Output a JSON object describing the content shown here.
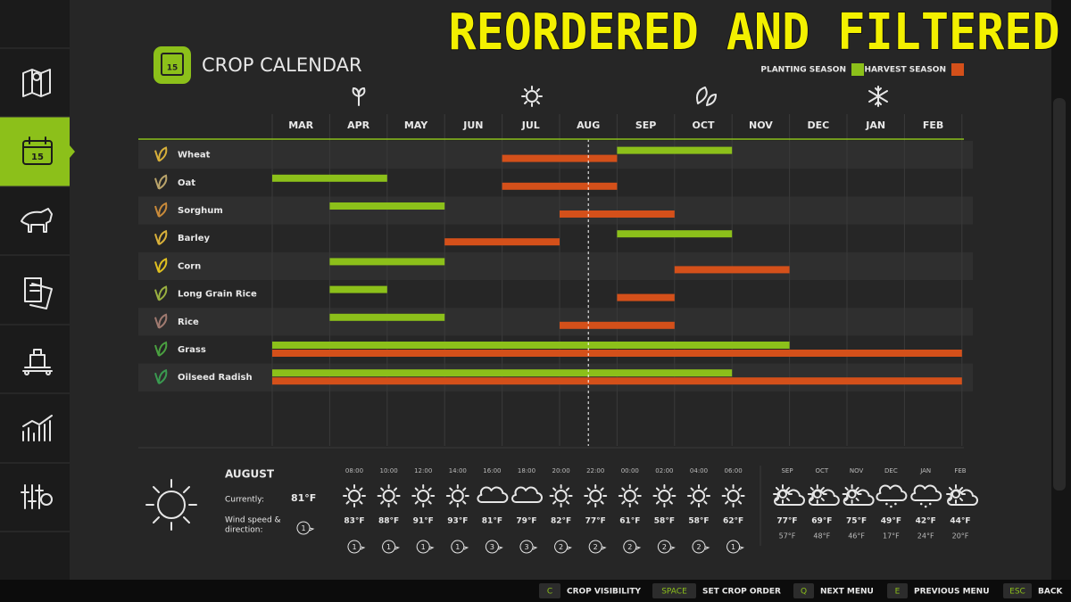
{
  "banner": "REORDERED AND FILTERED",
  "header": {
    "icon_label": "15",
    "title": "CROP CALENDAR"
  },
  "legend": {
    "planting": {
      "label": "PLANTING SEASON",
      "color": "#8cc01a"
    },
    "harvest": {
      "label": "HARVEST SEASON",
      "color": "#d4501a"
    }
  },
  "calendar": {
    "months": [
      "MAR",
      "APR",
      "MAY",
      "JUN",
      "JUL",
      "AUG",
      "SEP",
      "OCT",
      "NOV",
      "DEC",
      "JAN",
      "FEB"
    ],
    "today": 5.5,
    "crops": [
      {
        "name": "Wheat",
        "planting": [
          [
            6,
            8
          ]
        ],
        "harvest": [
          [
            4,
            6
          ]
        ]
      },
      {
        "name": "Oat",
        "planting": [
          [
            0,
            2
          ]
        ],
        "harvest": [
          [
            4,
            6
          ]
        ]
      },
      {
        "name": "Sorghum",
        "planting": [
          [
            1,
            3
          ]
        ],
        "harvest": [
          [
            5,
            7
          ]
        ]
      },
      {
        "name": "Barley",
        "planting": [
          [
            6,
            8
          ]
        ],
        "harvest": [
          [
            3,
            5
          ]
        ]
      },
      {
        "name": "Corn",
        "planting": [
          [
            1,
            3
          ]
        ],
        "harvest": [
          [
            7,
            9
          ]
        ]
      },
      {
        "name": "Long Grain Rice",
        "planting": [
          [
            1,
            2
          ]
        ],
        "harvest": [
          [
            6,
            7
          ]
        ]
      },
      {
        "name": "Rice",
        "planting": [
          [
            1,
            3
          ]
        ],
        "harvest": [
          [
            5,
            7
          ]
        ]
      },
      {
        "name": "Grass",
        "planting": [
          [
            0,
            9
          ]
        ],
        "harvest": [
          [
            0,
            12
          ]
        ]
      },
      {
        "name": "Oilseed Radish",
        "planting": [
          [
            0,
            8
          ]
        ],
        "harvest": [
          [
            0,
            12
          ]
        ]
      }
    ]
  },
  "weather": {
    "month": "AUGUST",
    "current_label": "Currently:",
    "current_temp": "81°F",
    "wind_label": [
      "Wind speed &",
      "direction:"
    ],
    "wind": "1",
    "hourly": [
      {
        "time": "08:00",
        "icon": "sun",
        "temp": "83°F",
        "wind": "1"
      },
      {
        "time": "10:00",
        "icon": "sun",
        "temp": "88°F",
        "wind": "1"
      },
      {
        "time": "12:00",
        "icon": "sun",
        "temp": "91°F",
        "wind": "1"
      },
      {
        "time": "14:00",
        "icon": "sun",
        "temp": "93°F",
        "wind": "1"
      },
      {
        "time": "16:00",
        "icon": "cloud",
        "temp": "81°F",
        "wind": "3"
      },
      {
        "time": "18:00",
        "icon": "cloud",
        "temp": "79°F",
        "wind": "3"
      },
      {
        "time": "20:00",
        "icon": "sun",
        "temp": "82°F",
        "wind": "2"
      },
      {
        "time": "22:00",
        "icon": "sun",
        "temp": "77°F",
        "wind": "2"
      },
      {
        "time": "00:00",
        "icon": "sun",
        "temp": "61°F",
        "wind": "2"
      },
      {
        "time": "02:00",
        "icon": "sun",
        "temp": "58°F",
        "wind": "2"
      },
      {
        "time": "04:00",
        "icon": "sun",
        "temp": "58°F",
        "wind": "2"
      },
      {
        "time": "06:00",
        "icon": "sun",
        "temp": "62°F",
        "wind": "1"
      }
    ],
    "forecast": [
      {
        "month": "SEP",
        "icon": "partly",
        "high": "77°F",
        "low": "57°F"
      },
      {
        "month": "OCT",
        "icon": "partly",
        "high": "69°F",
        "low": "48°F"
      },
      {
        "month": "NOV",
        "icon": "partly",
        "high": "75°F",
        "low": "46°F"
      },
      {
        "month": "DEC",
        "icon": "snow",
        "high": "49°F",
        "low": "17°F"
      },
      {
        "month": "JAN",
        "icon": "snow",
        "high": "42°F",
        "low": "24°F"
      },
      {
        "month": "FEB",
        "icon": "partly",
        "high": "44°F",
        "low": "20°F"
      }
    ]
  },
  "footer": [
    {
      "key": "C",
      "action": "CROP VISIBILITY"
    },
    {
      "key": "SPACE",
      "action": "SET CROP ORDER"
    },
    {
      "key": "Q",
      "action": "NEXT MENU"
    },
    {
      "key": "E",
      "action": "PREVIOUS MENU"
    },
    {
      "key": "ESC",
      "action": "BACK"
    }
  ]
}
